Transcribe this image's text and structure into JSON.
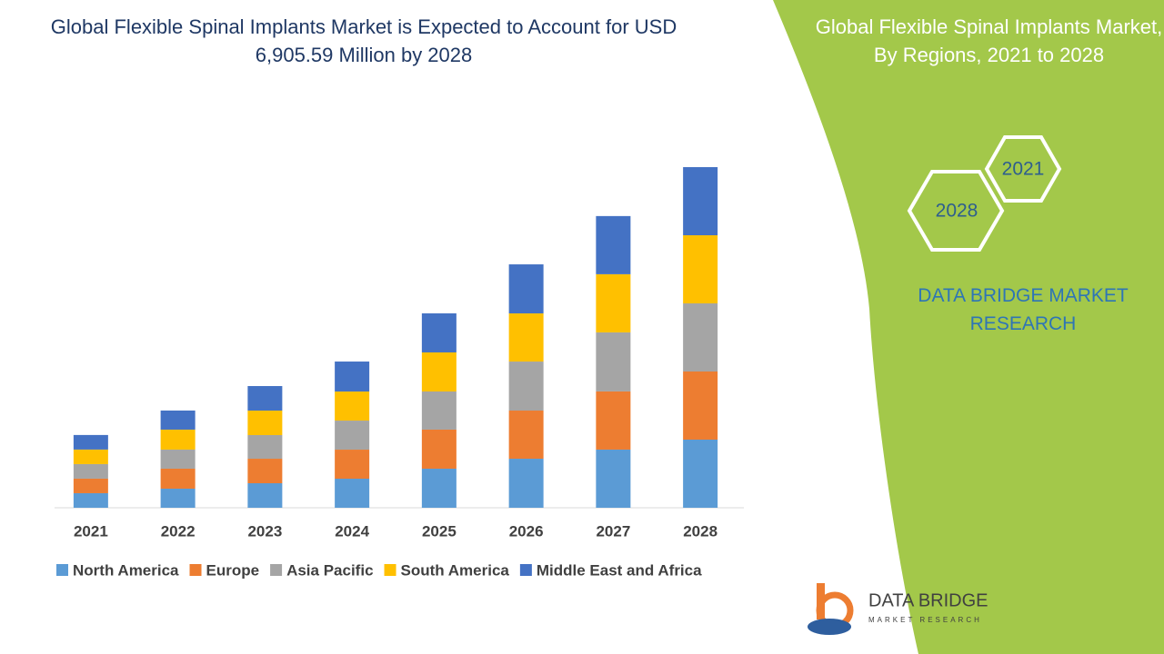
{
  "chart_data": {
    "type": "stacked-bar",
    "title": "Global Flexible Spinal Implants Market is Expected to Account for USD 6,905.59 Million by 2028",
    "categories": [
      "2021",
      "2022",
      "2023",
      "2024",
      "2025",
      "2026",
      "2027",
      "2028"
    ],
    "series": [
      {
        "name": "North America",
        "color": "#5b9bd5",
        "values": [
          295,
          387,
          497,
          589,
          792,
          994,
          1179,
          1381
        ]
      },
      {
        "name": "Europe",
        "color": "#ed7d31",
        "values": [
          295,
          405,
          497,
          589,
          792,
          976,
          1179,
          1381
        ]
      },
      {
        "name": "Asia Pacific",
        "color": "#a5a5a5",
        "values": [
          295,
          387,
          479,
          589,
          773,
          994,
          1197,
          1381
        ]
      },
      {
        "name": "South America",
        "color": "#ffc000",
        "values": [
          295,
          405,
          497,
          589,
          792,
          976,
          1179,
          1381
        ]
      },
      {
        "name": "Middle East and Africa",
        "color": "#4472c4",
        "values": [
          295,
          387,
          497,
          608,
          792,
          994,
          1179,
          1381
        ]
      }
    ],
    "legend": "bottom"
  },
  "side_panel": {
    "title": "Global Flexible Spinal Implants Market, By Regions, 2021 to 2028",
    "hexagons": [
      "2021",
      "2028"
    ],
    "brand": "DATA BRIDGE MARKET RESEARCH"
  },
  "logo": {
    "name": "DATA BRIDGE",
    "tagline": "MARKET RESEARCH"
  }
}
